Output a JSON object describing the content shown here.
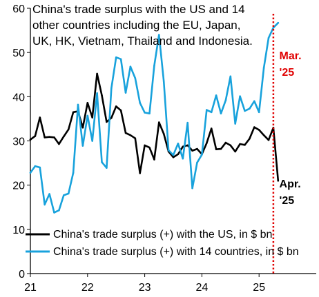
{
  "chart_data": {
    "type": "line",
    "title_lines": [
      "China's trade surplus with the US and 14",
      "other countries including the EU, Japan,",
      "UK, HK, Vietnam, Thailand and Indonesia."
    ],
    "xlabel": "",
    "ylabel": "",
    "ylim": [
      0,
      60
    ],
    "xlim": [
      2021.0,
      2026.0
    ],
    "y_ticks": [
      0,
      10,
      20,
      30,
      40,
      50,
      60
    ],
    "x_ticks": [
      {
        "value": 2021,
        "label": "21"
      },
      {
        "value": 2022,
        "label": "22"
      },
      {
        "value": 2023,
        "label": "23"
      },
      {
        "value": 2024,
        "label": "24"
      },
      {
        "value": 2025,
        "label": "25"
      }
    ],
    "grid": false,
    "legend_position": "bottom-left",
    "series": [
      {
        "name": "China's trade surplus (+) with the US, in $ bn",
        "color": "#000000",
        "x": [
          2021.0,
          2021.083,
          2021.167,
          2021.25,
          2021.333,
          2021.417,
          2021.5,
          2021.583,
          2021.667,
          2021.75,
          2021.833,
          2021.917,
          2022.0,
          2022.083,
          2022.167,
          2022.25,
          2022.333,
          2022.417,
          2022.5,
          2022.583,
          2022.667,
          2022.75,
          2022.833,
          2022.917,
          2023.0,
          2023.083,
          2023.167,
          2023.25,
          2023.333,
          2023.417,
          2023.5,
          2023.583,
          2023.667,
          2023.75,
          2023.833,
          2023.917,
          2024.0,
          2024.083,
          2024.167,
          2024.25,
          2024.333,
          2024.417,
          2024.5,
          2024.583,
          2024.667,
          2024.75,
          2024.833,
          2024.917,
          2025.0,
          2025.083,
          2025.167,
          2025.25,
          2025.333
        ],
        "values": [
          30.3,
          31.1,
          35.3,
          30.8,
          30.9,
          30.8,
          29.3,
          31.0,
          32.6,
          36.5,
          36.7,
          33.0,
          38.6,
          35.3,
          45.2,
          40.3,
          34.3,
          35.2,
          37.8,
          36.9,
          31.8,
          31.3,
          30.6,
          22.7,
          29.0,
          28.5,
          25.8,
          34.2,
          31.6,
          27.6,
          26.3,
          27.0,
          28.7,
          29.0,
          27.8,
          28.2,
          27.0,
          29.5,
          32.8,
          28.1,
          28.2,
          29.6,
          29.0,
          27.6,
          29.3,
          29.1,
          30.5,
          33.1,
          32.5,
          31.3,
          30.2,
          33.0,
          21.0
        ]
      },
      {
        "name": "China's trade surplus (+) with 14 countries, in $ bn",
        "color": "#18a2dc",
        "x": [
          2021.0,
          2021.083,
          2021.167,
          2021.25,
          2021.333,
          2021.417,
          2021.5,
          2021.583,
          2021.667,
          2021.75,
          2021.833,
          2021.917,
          2022.0,
          2022.083,
          2022.167,
          2022.25,
          2022.333,
          2022.417,
          2022.5,
          2022.583,
          2022.667,
          2022.75,
          2022.833,
          2022.917,
          2023.0,
          2023.083,
          2023.167,
          2023.25,
          2023.333,
          2023.417,
          2023.5,
          2023.583,
          2023.667,
          2023.75,
          2023.833,
          2023.917,
          2024.0,
          2024.083,
          2024.167,
          2024.25,
          2024.333,
          2024.417,
          2024.5,
          2024.583,
          2024.667,
          2024.75,
          2024.833,
          2024.917,
          2025.0,
          2025.083,
          2025.167,
          2025.25,
          2025.333
        ],
        "values": [
          22.8,
          24.3,
          24.0,
          15.6,
          18.0,
          13.8,
          14.3,
          17.7,
          18.1,
          22.8,
          38.2,
          28.9,
          35.7,
          30.0,
          40.8,
          25.2,
          23.9,
          41.9,
          48.9,
          48.5,
          40.9,
          46.8,
          44.2,
          38.6,
          36.4,
          36.2,
          47.0,
          54.0,
          43.5,
          27.9,
          26.8,
          29.4,
          26.0,
          34.1,
          19.3,
          25.1,
          26.9,
          37.0,
          36.5,
          40.3,
          36.2,
          39.2,
          44.6,
          33.9,
          40.1,
          36.8,
          37.3,
          39.0,
          36.5,
          46.5,
          53.3,
          55.6,
          56.7
        ]
      }
    ],
    "reference_line": {
      "x": 2025.25,
      "color": "#e00000",
      "style": "dotted"
    },
    "annotations": [
      {
        "lines": [
          "Mar.",
          "'25"
        ],
        "color": "#e00000",
        "x": 2025.33,
        "y": 48.5
      },
      {
        "lines": [
          "Apr.",
          "'25"
        ],
        "color": "#000000",
        "x": 2025.33,
        "y": 19.5
      }
    ]
  }
}
